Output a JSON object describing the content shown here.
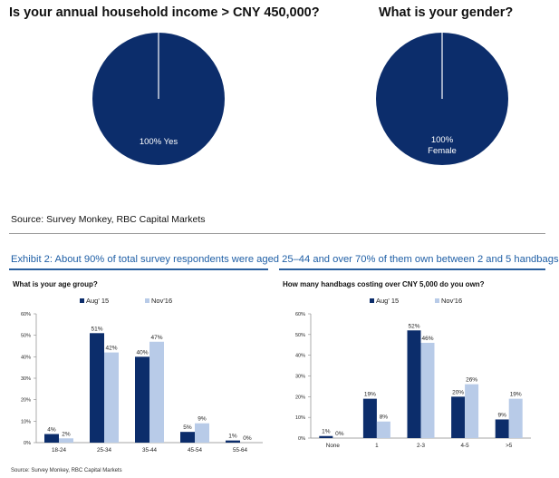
{
  "colors": {
    "navy": "#0c2d6b",
    "light": "#b8cbe8",
    "accent_text": "#1f5fa6"
  },
  "charts": [
    {
      "title": "Is your annual household income > CNY 450,000?",
      "label_lines": [
        "100% Yes"
      ]
    },
    {
      "title": "What is your gender?",
      "label_lines": [
        "100%",
        "Female"
      ]
    }
  ],
  "source_top": "Source: Survey Monkey, RBC Capital Markets",
  "exhibit_title": "Exhibit 2: About 90% of total survey respondents were aged 25–44 and over 70% of them own between 2 and 5 handbags",
  "bar_charts": [
    {
      "question": "What is your age group?"
    },
    {
      "question": "How many handbags costing over CNY 5,000 do you own?"
    }
  ],
  "source_bottom": "Source: Survey Monkey, RBC Capital Markets",
  "chart_data": [
    {
      "type": "pie",
      "title": "Is your annual household income > CNY 450,000?",
      "slices": [
        {
          "label": "Yes",
          "value": 100
        }
      ]
    },
    {
      "type": "pie",
      "title": "What is your gender?",
      "slices": [
        {
          "label": "Female",
          "value": 100
        }
      ]
    },
    {
      "type": "bar",
      "title": "What is your age group?",
      "categories": [
        "18-24",
        "25-34",
        "35-44",
        "45-54",
        "55-64"
      ],
      "series": [
        {
          "name": "Aug' 15",
          "values": [
            4,
            51,
            40,
            5,
            1
          ]
        },
        {
          "name": "Nov'16",
          "values": [
            2,
            42,
            47,
            9,
            0
          ]
        }
      ],
      "ylim": [
        0,
        60
      ],
      "yticks": [
        "0%",
        "10%",
        "20%",
        "30%",
        "40%",
        "50%",
        "60%"
      ],
      "legend": "top"
    },
    {
      "type": "bar",
      "title": "How many handbags costing over CNY 5,000 do you own?",
      "categories": [
        "None",
        "1",
        "2-3",
        "4-5",
        ">5"
      ],
      "series": [
        {
          "name": "Aug' 15",
          "values": [
            1,
            19,
            52,
            20,
            9
          ]
        },
        {
          "name": "Nov'16",
          "values": [
            0,
            8,
            46,
            26,
            19
          ]
        }
      ],
      "ylim": [
        0,
        60
      ],
      "yticks": [
        "0%",
        "10%",
        "20%",
        "30%",
        "40%",
        "50%",
        "60%"
      ],
      "legend": "top"
    }
  ]
}
